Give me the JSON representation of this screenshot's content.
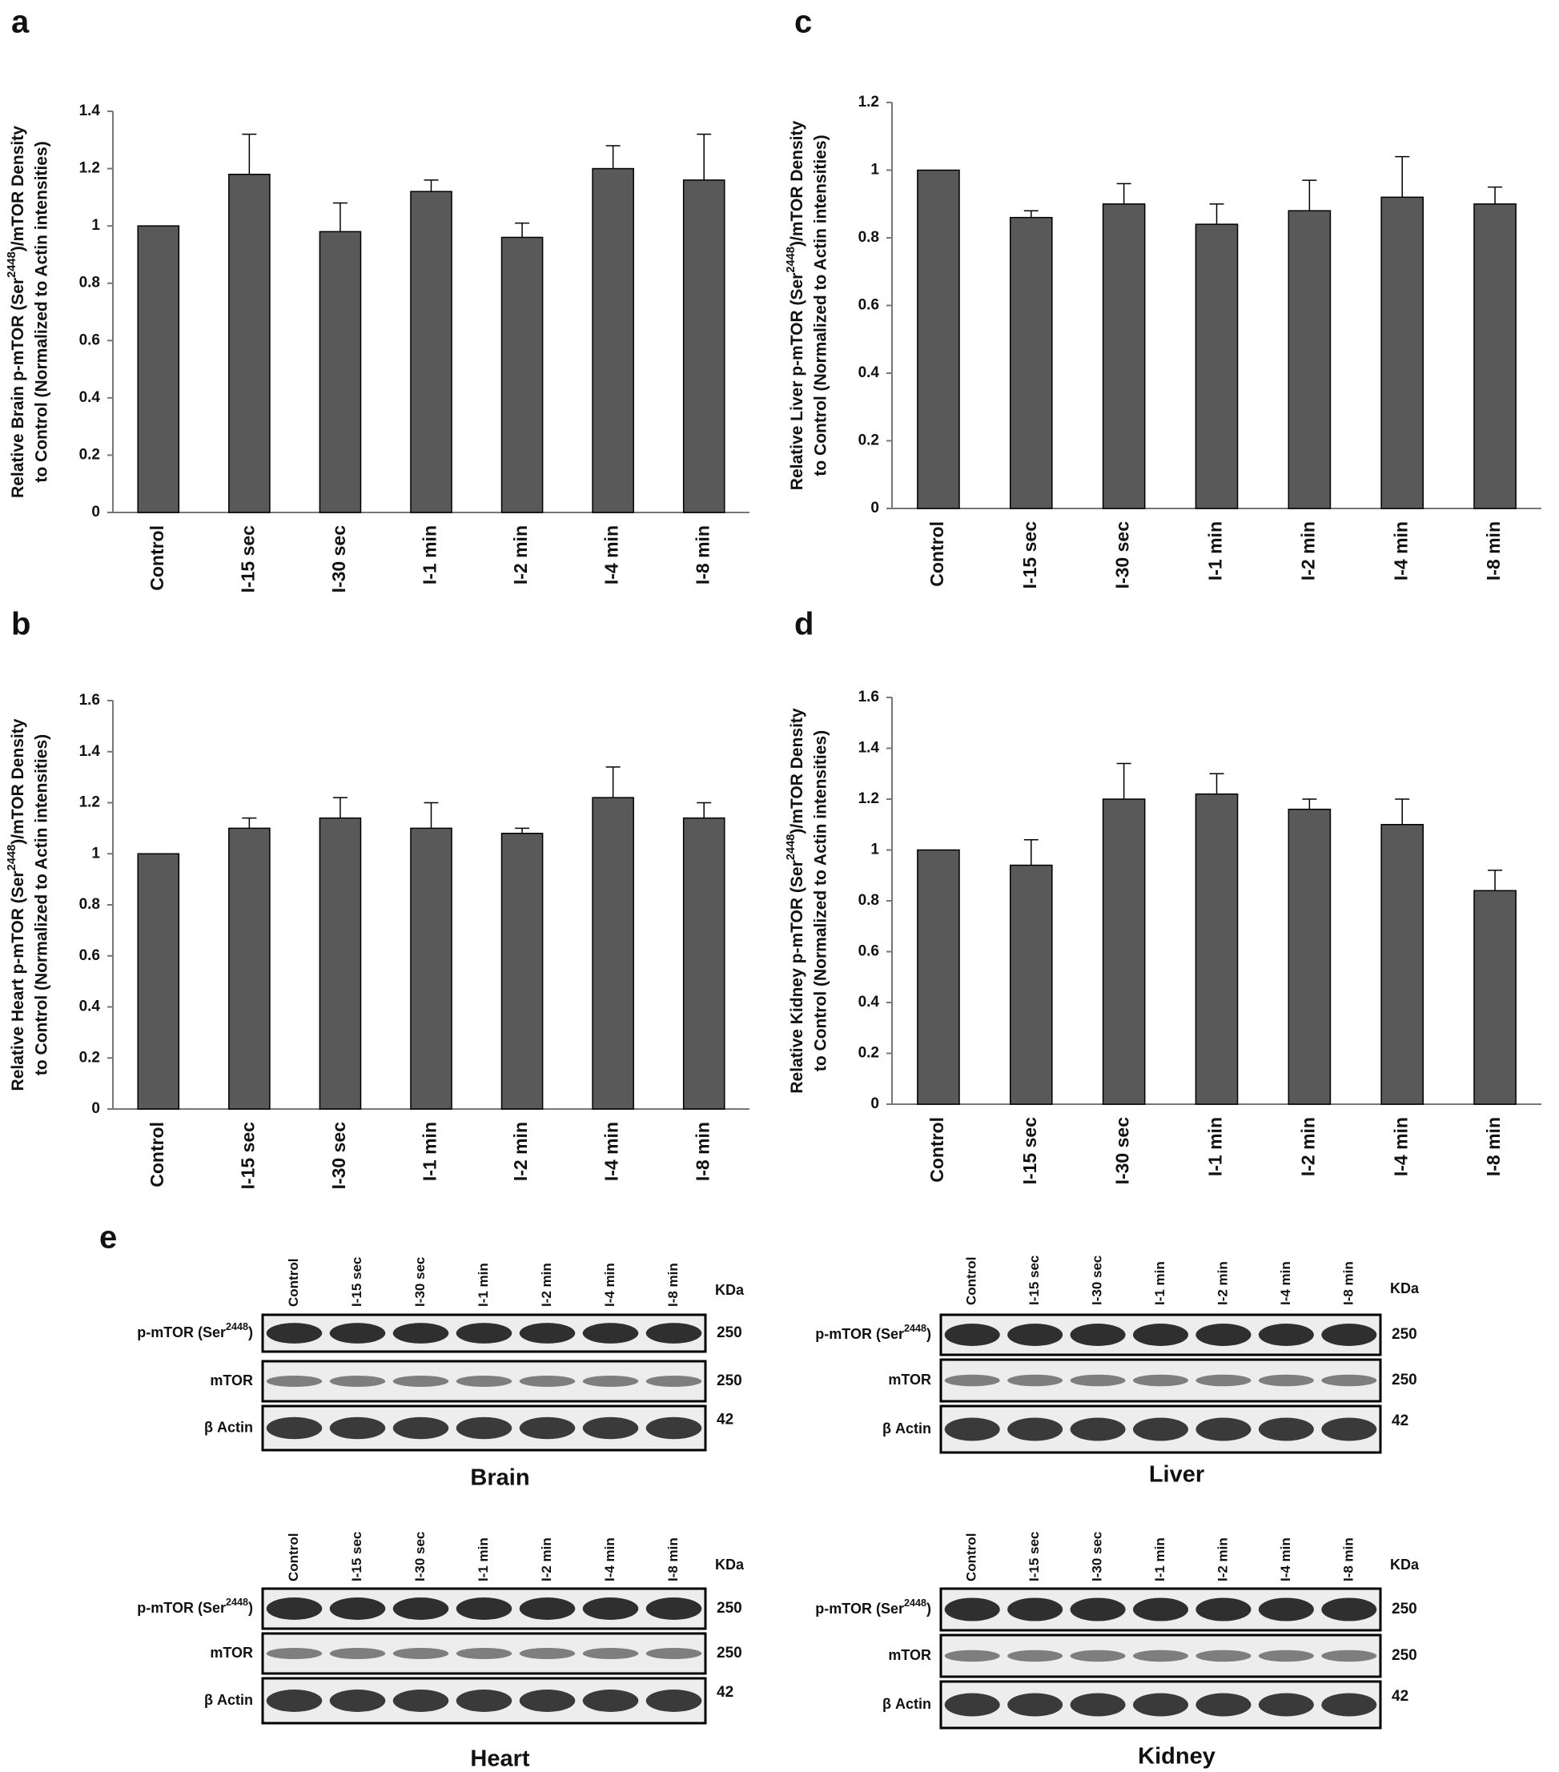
{
  "chart_data": [
    {
      "type": "bar",
      "panel": "a",
      "categories": [
        "Control",
        "I-15 sec",
        "I-30 sec",
        "I-1 min",
        "I-2 min",
        "I-4 min",
        "I-8 min"
      ],
      "values": [
        1,
        1.18,
        0.98,
        1.12,
        0.96,
        1.2,
        1.16
      ],
      "errors": [
        null,
        0.14,
        0.1,
        0.04,
        0.05,
        0.08,
        0.16
      ],
      "color": "#595959",
      "ylim": [
        0,
        1.4
      ],
      "yticks": [
        0,
        0.2,
        0.4,
        0.6,
        0.8,
        1,
        1.2,
        1.4
      ],
      "ylabel": {
        "pre": "Relative Brain p-mTOR (Ser",
        "sup": "2448",
        "post": ")/mTOR Density",
        "line2": "to Control (Normalized to Actin intensities)"
      }
    },
    {
      "type": "bar",
      "panel": "c",
      "categories": [
        "Control",
        "I-15 sec",
        "I-30 sec",
        "I-1 min",
        "I-2 min",
        "I-4 min",
        "I-8 min"
      ],
      "values": [
        1,
        0.86,
        0.9,
        0.84,
        0.88,
        0.92,
        0.9
      ],
      "errors": [
        null,
        0.02,
        0.06,
        0.06,
        0.09,
        0.12,
        0.05
      ],
      "color": "#595959",
      "ylim": [
        0,
        1.2
      ],
      "yticks": [
        0,
        0.2,
        0.4,
        0.6,
        0.8,
        1,
        1.2
      ],
      "ylabel": {
        "pre": "Relative Liver p-mTOR (Ser",
        "sup": "2448",
        "post": ")/mTOR Density",
        "line2": "to Control (Normalized to Actin intensities)"
      }
    },
    {
      "type": "bar",
      "panel": "b",
      "categories": [
        "Control",
        "I-15 sec",
        "I-30 sec",
        "I-1 min",
        "I-2 min",
        "I-4 min",
        "I-8 min"
      ],
      "values": [
        1,
        1.1,
        1.14,
        1.1,
        1.08,
        1.22,
        1.14
      ],
      "errors": [
        null,
        0.04,
        0.08,
        0.1,
        0.02,
        0.12,
        0.06
      ],
      "color": "#595959",
      "ylim": [
        0,
        1.6
      ],
      "yticks": [
        0,
        0.2,
        0.4,
        0.6,
        0.8,
        1,
        1.2,
        1.4,
        1.6
      ],
      "ylabel": {
        "pre": "Relative Heart p-mTOR (Ser",
        "sup": "2448",
        "post": ")/mTOR Density",
        "line2": "to Control (Normalized to Actin intensities)"
      }
    },
    {
      "type": "bar",
      "panel": "d",
      "categories": [
        "Control",
        "I-15 sec",
        "I-30 sec",
        "I-1 min",
        "I-2 min",
        "I-4 min",
        "I-8 min"
      ],
      "values": [
        1,
        0.94,
        1.2,
        1.22,
        1.16,
        1.1,
        0.84
      ],
      "errors": [
        null,
        0.1,
        0.14,
        0.08,
        0.04,
        0.1,
        0.08
      ],
      "color": "#595959",
      "ylim": [
        0,
        1.6
      ],
      "yticks": [
        0,
        0.2,
        0.4,
        0.6,
        0.8,
        1,
        1.2,
        1.4,
        1.6
      ],
      "ylabel": {
        "pre": "Relative Kidney p-mTOR (Ser",
        "sup": "2448",
        "post": ")/mTOR Density",
        "line2": "to Control (Normalized to Actin intensities)"
      }
    }
  ],
  "blots": {
    "panel": "e",
    "items": [
      {
        "tissue": "Brain",
        "kda_header": "KDa",
        "lanes": [
          "Control",
          "I-15 sec",
          "I-30 sec",
          "I-1 min",
          "I-2 min",
          "I-4 min",
          "I-8 min"
        ],
        "rows": [
          {
            "pre": "p-mTOR (Ser",
            "sup": "2448",
            "post": ")",
            "kda": 250
          },
          {
            "pre": "mTOR",
            "kda": 250
          },
          {
            "pre": "β Actin",
            "kda": 42
          }
        ]
      },
      {
        "tissue": "Liver",
        "kda_header": "KDa",
        "lanes": [
          "Control",
          "I-15 sec",
          "I-30 sec",
          "I-1 min",
          "I-2 min",
          "I-4 min",
          "I-8 min"
        ],
        "rows": [
          {
            "pre": "p-mTOR (Ser",
            "sup": "2448",
            "post": ")",
            "kda": 250
          },
          {
            "pre": "mTOR",
            "kda": 250
          },
          {
            "pre": "β Actin",
            "kda": 42
          }
        ]
      },
      {
        "tissue": "Heart",
        "kda_header": "KDa",
        "lanes": [
          "Control",
          "I-15 sec",
          "I-30 sec",
          "I-1 min",
          "I-2 min",
          "I-4 min",
          "I-8 min"
        ],
        "rows": [
          {
            "pre": "p-mTOR (Ser",
            "sup": "2448",
            "post": ")",
            "kda": 250
          },
          {
            "pre": "mTOR",
            "kda": 250
          },
          {
            "pre": "β Actin",
            "kda": 42
          }
        ]
      },
      {
        "tissue": "Kidney",
        "kda_header": "KDa",
        "lanes": [
          "Control",
          "I-15 sec",
          "I-30 sec",
          "I-1 min",
          "I-2 min",
          "I-4 min",
          "I-8 min"
        ],
        "rows": [
          {
            "pre": "p-mTOR (Ser",
            "sup": "2448",
            "post": ")",
            "kda": 250
          },
          {
            "pre": "mTOR",
            "kda": 250
          },
          {
            "pre": "β Actin",
            "kda": 42
          }
        ]
      }
    ]
  }
}
